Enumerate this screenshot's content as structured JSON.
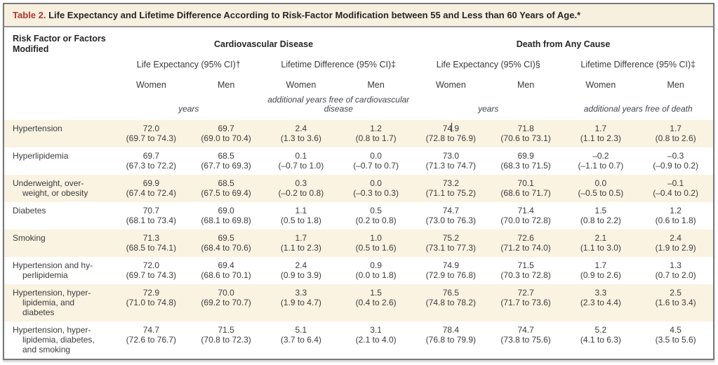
{
  "title": {
    "label": "Table 2.",
    "text": " Life Expectancy and Lifetime Difference According to Risk-Factor Modification between 55 and Less than 60 Years of Age.*"
  },
  "colors": {
    "accent": "#b5332c",
    "band": "#f7f0df",
    "stripe": "#faf3e2",
    "frame": "#77787b"
  },
  "table": {
    "row_header": "Risk Factor or Factors\nModified",
    "groups": [
      {
        "label": "Cardiovascular Disease",
        "subgroups": [
          {
            "label": "Life Expectancy (95% CI)†",
            "unit": "years",
            "columns": [
              "Women",
              "Men"
            ]
          },
          {
            "label": "Lifetime Difference (95% CI)‡",
            "unit": "additional years free of cardiovascular\ndisease",
            "columns": [
              "Women",
              "Men"
            ]
          }
        ]
      },
      {
        "label": "Death from Any Cause",
        "subgroups": [
          {
            "label": "Life Expectancy (95% CI)§",
            "unit": "years",
            "columns": [
              "Women",
              "Men"
            ]
          },
          {
            "label": "Lifetime Difference (95% CI)‡",
            "unit": "additional years free of death",
            "columns": [
              "Women",
              "Men"
            ]
          }
        ]
      }
    ],
    "cursor": {
      "row": 0,
      "col": 4
    },
    "rows": [
      {
        "label": "Hypertension",
        "cells": [
          {
            "v": "72.0",
            "ci": "(69.7 to 74.3)"
          },
          {
            "v": "69.7",
            "ci": "(69.0 to 70.4)"
          },
          {
            "v": "2.4",
            "ci": "(1.3 to 3.6)"
          },
          {
            "v": "1.2",
            "ci": "(0.8 to 1.7)"
          },
          {
            "v": "74.9",
            "ci": "(72.8 to 76.9)"
          },
          {
            "v": "71.8",
            "ci": "(70.6 to 73.1)"
          },
          {
            "v": "1.7",
            "ci": "(1.1 to 2.3)"
          },
          {
            "v": "1.7",
            "ci": "(0.8 to 2.6)"
          }
        ]
      },
      {
        "label": "Hyperlipidemia",
        "cells": [
          {
            "v": "69.7",
            "ci": "(67.3 to 72.2)"
          },
          {
            "v": "68.5",
            "ci": "(67.7 to 69.3)"
          },
          {
            "v": "0.1",
            "ci": "(–0.7 to 1.0)"
          },
          {
            "v": "0.0",
            "ci": "(–0.7 to 0.7)"
          },
          {
            "v": "73.0",
            "ci": "(71.3 to 74.7)"
          },
          {
            "v": "69.9",
            "ci": "(68.3 to 71.5)"
          },
          {
            "v": "–0.2",
            "ci": "(–1.1 to 0.7)"
          },
          {
            "v": "–0.3",
            "ci": "(–0.9 to 0.2)"
          }
        ]
      },
      {
        "label": "Underweight, over-\nweight, or obesity",
        "cells": [
          {
            "v": "69.9",
            "ci": "(67.4 to 72.4)"
          },
          {
            "v": "68.5",
            "ci": "(67.5 to 69.4)"
          },
          {
            "v": "0.3",
            "ci": "(–0.2 to 0.8)"
          },
          {
            "v": "0.0",
            "ci": "(–0.3 to 0.3)"
          },
          {
            "v": "73.2",
            "ci": "(71.1 to 75.2)"
          },
          {
            "v": "70.1",
            "ci": "(68.6 to 71.7)"
          },
          {
            "v": "0.0",
            "ci": "(–0.5 to 0.5)"
          },
          {
            "v": "–0.1",
            "ci": "(–0.4 to 0.2)"
          }
        ]
      },
      {
        "label": "Diabetes",
        "cells": [
          {
            "v": "70.7",
            "ci": "(68.1 to 73.4)"
          },
          {
            "v": "69.0",
            "ci": "(68.1 to 69.8)"
          },
          {
            "v": "1.1",
            "ci": "(0.5 to 1.8)"
          },
          {
            "v": "0.5",
            "ci": "(0.2 to 0.8)"
          },
          {
            "v": "74.7",
            "ci": "(73.0 to 76.3)"
          },
          {
            "v": "71.4",
            "ci": "(70.0 to 72.8)"
          },
          {
            "v": "1.5",
            "ci": "(0.8 to 2.2)"
          },
          {
            "v": "1.2",
            "ci": "(0.6 to 1.8)"
          }
        ]
      },
      {
        "label": "Smoking",
        "cells": [
          {
            "v": "71.3",
            "ci": "(68.5 to 74.1)"
          },
          {
            "v": "69.5",
            "ci": "(68.4 to 70.6)"
          },
          {
            "v": "1.7",
            "ci": "(1.1 to 2.3)"
          },
          {
            "v": "1.0",
            "ci": "(0.5 to 1.6)"
          },
          {
            "v": "75.2",
            "ci": "(73.1 to 77.3)"
          },
          {
            "v": "72.6",
            "ci": "(71.2 to 74.0)"
          },
          {
            "v": "2.1",
            "ci": "(1.1 to 3.0)"
          },
          {
            "v": "2.4",
            "ci": "(1.9 to 2.9)"
          }
        ]
      },
      {
        "label": "Hypertension and hy-\nperlipidemia",
        "cells": [
          {
            "v": "72.0",
            "ci": "(69.7 to 74.3)"
          },
          {
            "v": "69.4",
            "ci": "(68.6 to 70.1)"
          },
          {
            "v": "2.4",
            "ci": "(0.9 to 3.9)"
          },
          {
            "v": "0.9",
            "ci": "(0.0 to 1.8)"
          },
          {
            "v": "74.9",
            "ci": "(72.9 to 76.8)"
          },
          {
            "v": "71.5",
            "ci": "(70.3 to 72.8)"
          },
          {
            "v": "1.7",
            "ci": "(0.9 to 2.6)"
          },
          {
            "v": "1.3",
            "ci": "(0.7 to 2.0)"
          }
        ]
      },
      {
        "label": "Hypertension, hyper-\nlipidemia, and\ndiabetes",
        "cells": [
          {
            "v": "72.9",
            "ci": "(71.0 to 74.8)"
          },
          {
            "v": "70.0",
            "ci": "(69.2 to 70.7)"
          },
          {
            "v": "3.3",
            "ci": "(1.9 to 4.7)"
          },
          {
            "v": "1.5",
            "ci": "(0.4 to 2.6)"
          },
          {
            "v": "76.5",
            "ci": "(74.8 to 78.2)"
          },
          {
            "v": "72.7",
            "ci": "(71.7 to 73.6)"
          },
          {
            "v": "3.3",
            "ci": "(2.3 to 4.4)"
          },
          {
            "v": "2.5",
            "ci": "(1.6 to 3.4)"
          }
        ]
      },
      {
        "label": "Hypertension, hyper-\nlipidemia, diabetes,\nand smoking",
        "cells": [
          {
            "v": "74.7",
            "ci": "(72.6 to 76.7)"
          },
          {
            "v": "71.5",
            "ci": "(70.8 to 72.3)"
          },
          {
            "v": "5.1",
            "ci": "(3.7 to 6.4)"
          },
          {
            "v": "3.1",
            "ci": "(2.1 to 4.0)"
          },
          {
            "v": "78.4",
            "ci": "(76.8 to 79.9)"
          },
          {
            "v": "74.7",
            "ci": "(73.8 to 75.6)"
          },
          {
            "v": "5.2",
            "ci": "(4.1 to 6.3)"
          },
          {
            "v": "4.5",
            "ci": "(3.5 to 5.6)"
          }
        ]
      }
    ]
  }
}
